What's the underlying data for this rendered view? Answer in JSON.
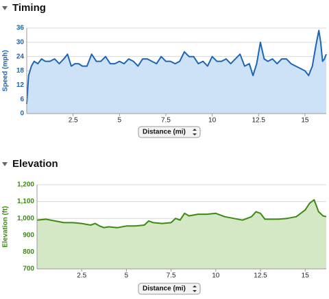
{
  "chart_data": [
    {
      "type": "line",
      "title": "Timing",
      "ylabel": "Speed (mph)",
      "xlabel": "Distance (mi)",
      "color": "#1c64b4",
      "fill": "#cde2f7",
      "grid": true,
      "xlim": [
        0,
        16.15
      ],
      "xticks": [
        2.5,
        5,
        7.5,
        10,
        12.5,
        15
      ],
      "ylim": [
        0,
        36
      ],
      "yticks": [
        0,
        6,
        12,
        18,
        24,
        30,
        36
      ],
      "x": [
        0,
        0.1,
        0.25,
        0.4,
        0.6,
        0.8,
        1.0,
        1.25,
        1.5,
        1.75,
        2.0,
        2.2,
        2.4,
        2.6,
        2.8,
        3.0,
        3.25,
        3.5,
        3.75,
        4.0,
        4.25,
        4.5,
        4.75,
        5.0,
        5.25,
        5.5,
        5.75,
        6.0,
        6.25,
        6.5,
        6.75,
        7.0,
        7.25,
        7.5,
        7.75,
        8.0,
        8.25,
        8.5,
        8.75,
        9.0,
        9.25,
        9.5,
        9.75,
        10.0,
        10.25,
        10.5,
        10.75,
        11.0,
        11.25,
        11.5,
        11.75,
        12.0,
        12.2,
        12.4,
        12.6,
        12.8,
        13.0,
        13.25,
        13.5,
        13.75,
        14.0,
        14.25,
        14.5,
        14.75,
        15.0,
        15.2,
        15.4,
        15.6,
        15.75,
        15.85,
        15.95,
        16.05,
        16.15
      ],
      "values": [
        4,
        16,
        20,
        22,
        21,
        23,
        22,
        22,
        23,
        21,
        23,
        25,
        20,
        21,
        21,
        20,
        20,
        25,
        22,
        22,
        24,
        21,
        21,
        22,
        21,
        23,
        22,
        20,
        23,
        23,
        22,
        21,
        24,
        22,
        22,
        21,
        22,
        26,
        24,
        24,
        21,
        22,
        20,
        24,
        22,
        22,
        23,
        21,
        23,
        25,
        20,
        21,
        16,
        21,
        30,
        23,
        22,
        23,
        21,
        23,
        23,
        21,
        20,
        19,
        18,
        16,
        20,
        29,
        35,
        30,
        22,
        23,
        25
      ]
    },
    {
      "type": "line",
      "title": "Elevation",
      "ylabel": "Elevation (ft)",
      "xlabel": "Distance (mi)",
      "color": "#3a8a12",
      "fill": "#d5e8c6",
      "grid": true,
      "xlim": [
        0,
        16.18
      ],
      "xticks": [
        2.5,
        5,
        7.5,
        10,
        12.5,
        15
      ],
      "ylim": [
        700,
        1200
      ],
      "yticks": [
        700,
        800,
        900,
        {
          "value": 1000,
          "label": "1,000"
        },
        {
          "value": 1100,
          "label": "1,100"
        },
        {
          "value": 1200,
          "label": "1,200"
        }
      ],
      "x": [
        0,
        0.5,
        1,
        1.5,
        2,
        2.5,
        3,
        3.25,
        3.5,
        3.75,
        4,
        4.5,
        5,
        5.5,
        6,
        6.25,
        6.5,
        7,
        7.5,
        7.75,
        8,
        8.25,
        8.5,
        9,
        9.5,
        10,
        10.5,
        11,
        11.5,
        12,
        12.25,
        12.5,
        12.75,
        13,
        13.5,
        14,
        14.5,
        15,
        15.25,
        15.5,
        15.75,
        16,
        16.18
      ],
      "values": [
        990,
        995,
        985,
        975,
        975,
        970,
        960,
        970,
        955,
        945,
        950,
        945,
        955,
        955,
        960,
        985,
        975,
        970,
        975,
        1000,
        990,
        1030,
        1015,
        1025,
        1025,
        1030,
        1010,
        1000,
        990,
        1010,
        1040,
        1030,
        995,
        995,
        995,
        1000,
        1010,
        1050,
        1090,
        1110,
        1040,
        1015,
        1010
      ]
    }
  ]
}
